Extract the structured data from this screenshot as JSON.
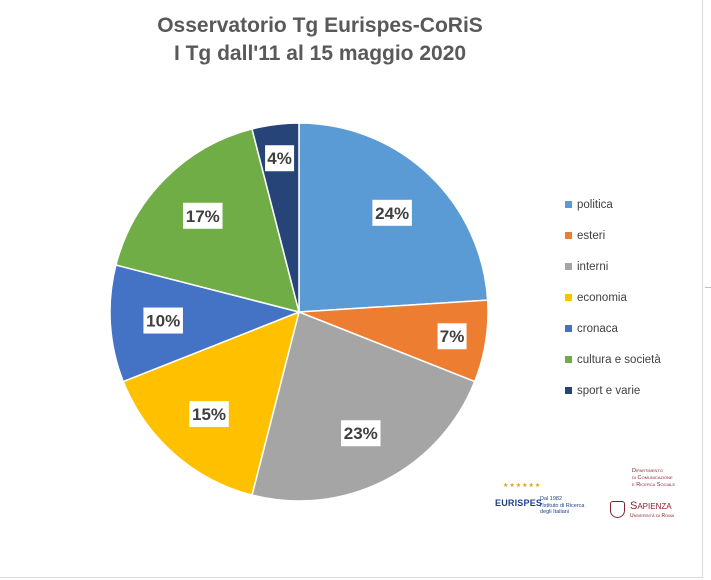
{
  "chart_data": {
    "type": "pie",
    "title_line1": "Osservatorio Tg Eurispes-CoRiS",
    "title_line2": "I Tg dall'11 al 15 maggio 2020",
    "legend_position": "right",
    "slices": [
      {
        "name": "politica",
        "value": 24,
        "label": "24%",
        "color": "#5b9bd5"
      },
      {
        "name": "esteri",
        "value": 7,
        "label": "7%",
        "color": "#ed7d31"
      },
      {
        "name": "interni",
        "value": 23,
        "label": "23%",
        "color": "#a5a5a5"
      },
      {
        "name": "economia",
        "value": 15,
        "label": "15%",
        "color": "#ffc000"
      },
      {
        "name": "cronaca",
        "value": 10,
        "label": "10%",
        "color": "#4472c4"
      },
      {
        "name": "cultura e società",
        "value": 17,
        "label": "17%",
        "color": "#70ad47"
      },
      {
        "name": "sport e varie",
        "value": 4,
        "label": "4%",
        "color": "#264478"
      }
    ]
  },
  "logos": {
    "eurispes_name": "EURISPES",
    "eurispes_tagline": [
      "Dal 1982",
      "l'Istituto di Ricerca",
      "degli Italiani"
    ],
    "dept_lines": [
      "Dipartimento",
      "di Comunicazione",
      "e Ricerca Sociale"
    ],
    "sapienza_name": "Sapienza",
    "sapienza_sub": "Università di Roma"
  }
}
